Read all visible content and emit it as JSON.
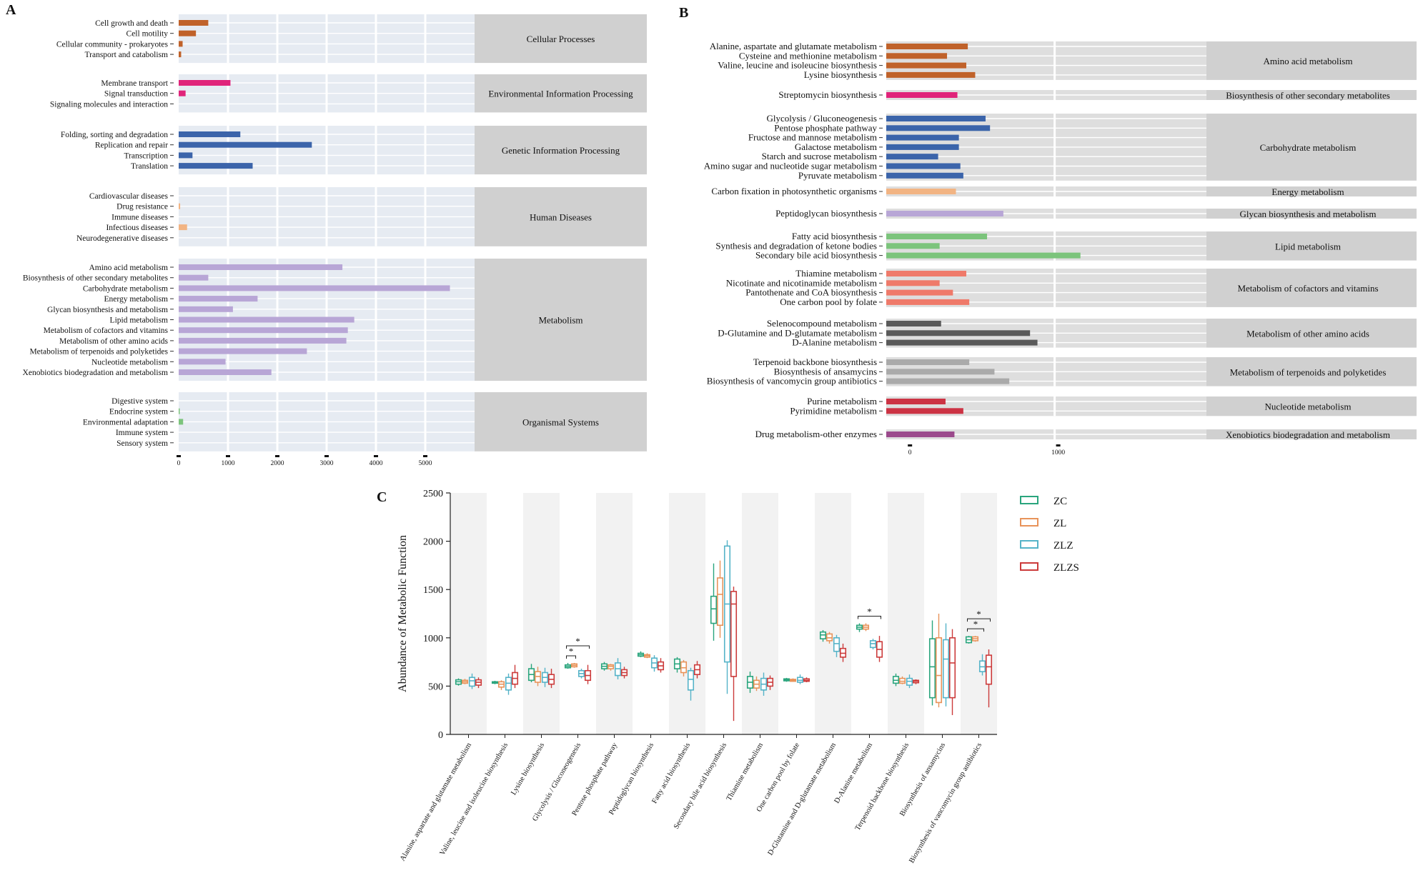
{
  "chart_data": [
    {
      "panel": "A",
      "type": "bar",
      "orientation": "horizontal",
      "xticks": [
        0,
        1000,
        2000,
        3000,
        4000,
        5000
      ],
      "xlim": [
        0,
        6000
      ],
      "groups": [
        {
          "name": "Cellular Processes",
          "color": "#c0622a",
          "items": [
            {
              "label": "Cell growth and death",
              "value": 600
            },
            {
              "label": "Cell motility",
              "value": 350
            },
            {
              "label": "Cellular community - prokaryotes",
              "value": 80
            },
            {
              "label": "Transport and catabolism",
              "value": 50
            }
          ]
        },
        {
          "name": "Environmental Information Processing",
          "color": "#e0247a",
          "items": [
            {
              "label": "Membrane transport",
              "value": 1050
            },
            {
              "label": "Signal transduction",
              "value": 140
            },
            {
              "label": "Signaling molecules and interaction",
              "value": 0
            }
          ]
        },
        {
          "name": "Genetic Information Processing",
          "color": "#3b64aa",
          "items": [
            {
              "label": "Folding, sorting and degradation",
              "value": 1250
            },
            {
              "label": "Replication and repair",
              "value": 2700
            },
            {
              "label": "Transcription",
              "value": 280
            },
            {
              "label": "Translation",
              "value": 1500
            }
          ]
        },
        {
          "name": "Human Diseases",
          "color": "#f2b483",
          "items": [
            {
              "label": "Cardiovascular diseases",
              "value": 0
            },
            {
              "label": "Drug resistance",
              "value": 30
            },
            {
              "label": "Immune diseases",
              "value": 0
            },
            {
              "label": "Infectious diseases",
              "value": 170
            },
            {
              "label": "Neurodegenerative diseases",
              "value": 0
            }
          ]
        },
        {
          "name": "Metabolism",
          "color": "#b8a6d6",
          "items": [
            {
              "label": "Amino acid metabolism",
              "value": 3320
            },
            {
              "label": "Biosynthesis of other secondary metabolites",
              "value": 600
            },
            {
              "label": "Carbohydrate metabolism",
              "value": 5500
            },
            {
              "label": "Energy metabolism",
              "value": 1600
            },
            {
              "label": "Glycan biosynthesis and metabolism",
              "value": 1100
            },
            {
              "label": "Lipid metabolism",
              "value": 3560
            },
            {
              "label": "Metabolism of cofactors and vitamins",
              "value": 3430
            },
            {
              "label": "Metabolism of other amino acids",
              "value": 3400
            },
            {
              "label": "Metabolism of terpenoids and polyketides",
              "value": 2600
            },
            {
              "label": "Nucleotide metabolism",
              "value": 950
            },
            {
              "label": "Xenobiotics biodegradation and metabolism",
              "value": 1880
            }
          ]
        },
        {
          "name": "Organismal Systems",
          "color": "#7cc47c",
          "items": [
            {
              "label": "Digestive system",
              "value": 0
            },
            {
              "label": "Endocrine system",
              "value": 20
            },
            {
              "label": "Environmental adaptation",
              "value": 90
            },
            {
              "label": "Immune system",
              "value": 0
            },
            {
              "label": "Sensory system",
              "value": 0
            }
          ]
        }
      ]
    },
    {
      "panel": "B",
      "type": "bar",
      "orientation": "horizontal",
      "xticks": [
        0,
        1000
      ],
      "xlim": [
        -160,
        2000
      ],
      "groups": [
        {
          "name": "Amino acid metabolism",
          "color": "#c0622a",
          "items": [
            {
              "label": "Alanine, aspartate and glutamate metabolism",
              "value": 390
            },
            {
              "label": "Cysteine and methionine metabolism",
              "value": 250
            },
            {
              "label": "Valine, leucine and isoleucine biosynthesis",
              "value": 380
            },
            {
              "label": "Lysine biosynthesis",
              "value": 440
            }
          ]
        },
        {
          "name": "Biosynthesis of other secondary metabolites",
          "color": "#e0247a",
          "items": [
            {
              "label": "Streptomycin biosynthesis",
              "value": 320
            }
          ]
        },
        {
          "name": "Carbohydrate metabolism",
          "color": "#3b64aa",
          "items": [
            {
              "label": "Glycolysis / Gluconeogenesis",
              "value": 510
            },
            {
              "label": "Pentose phosphate pathway",
              "value": 540
            },
            {
              "label": "Fructose and mannose metabolism",
              "value": 330
            },
            {
              "label": "Galactose metabolism",
              "value": 330
            },
            {
              "label": "Starch and sucrose metabolism",
              "value": 190
            },
            {
              "label": "Amino sugar and nucleotide sugar metabolism",
              "value": 340
            },
            {
              "label": "Pyruvate metabolism",
              "value": 360
            }
          ]
        },
        {
          "name": "Energy metabolism",
          "color": "#f2b483",
          "items": [
            {
              "label": "Carbon fixation in photosynthetic organisms",
              "value": 310
            }
          ]
        },
        {
          "name": "Glycan biosynthesis and metabolism",
          "color": "#b8a6d6",
          "items": [
            {
              "label": "Peptidoglycan biosynthesis",
              "value": 630
            }
          ]
        },
        {
          "name": "Lipid metabolism",
          "color": "#7cc47c",
          "items": [
            {
              "label": "Fatty acid biosynthesis",
              "value": 520
            },
            {
              "label": "Synthesis and degradation of ketone bodies",
              "value": 200
            },
            {
              "label": "Secondary bile acid biosynthesis",
              "value": 1150
            }
          ]
        },
        {
          "name": "Metabolism of cofactors and vitamins",
          "color": "#ef7a6a",
          "items": [
            {
              "label": "Thiamine metabolism",
              "value": 380
            },
            {
              "label": "Nicotinate and nicotinamide metabolism",
              "value": 200
            },
            {
              "label": "Pantothenate and CoA biosynthesis",
              "value": 290
            },
            {
              "label": "One carbon pool by folate",
              "value": 400
            }
          ]
        },
        {
          "name": "Metabolism of other amino acids",
          "color": "#5a5a5a",
          "items": [
            {
              "label": "Selenocompound metabolism",
              "value": 210
            },
            {
              "label": "D-Glutamine and D-glutamate metabolism",
              "value": 810
            },
            {
              "label": "D-Alanine metabolism",
              "value": 860
            }
          ]
        },
        {
          "name": "Metabolism of terpenoids and polyketides",
          "color": "#aaaaaa",
          "items": [
            {
              "label": "Terpenoid backbone biosynthesis",
              "value": 400
            },
            {
              "label": "Biosynthesis of ansamycins",
              "value": 570
            },
            {
              "label": "Biosynthesis of vancomycin group antibiotics",
              "value": 670
            }
          ]
        },
        {
          "name": "Nucleotide metabolism",
          "color": "#cc3344",
          "items": [
            {
              "label": "Purine metabolism",
              "value": 240
            },
            {
              "label": "Pyrimidine metabolism",
              "value": 360
            }
          ]
        },
        {
          "name": "Xenobiotics biodegradation and metabolism",
          "color": "#9b4a8c",
          "items": [
            {
              "label": "Drug metabolism-other enzymes",
              "value": 300
            }
          ]
        }
      ]
    },
    {
      "panel": "C",
      "type": "box",
      "ylabel": "Abundance of Metabolic Function",
      "ylim": [
        0,
        2500
      ],
      "yticks": [
        0,
        500,
        1000,
        1500,
        2000,
        2500
      ],
      "series": [
        {
          "name": "ZC",
          "color": "#2aa57d"
        },
        {
          "name": "ZL",
          "color": "#e8935a"
        },
        {
          "name": "ZLZ",
          "color": "#55b3c8"
        },
        {
          "name": "ZLZS",
          "color": "#cc3b3b"
        }
      ],
      "categories": [
        {
          "label": "Alanine, aspartate and glutamate metabolism",
          "boxes": [
            [
              505,
              520,
              545,
              565,
              580
            ],
            [
              520,
              530,
              545,
              560,
              575
            ],
            [
              470,
              500,
              555,
              590,
              630
            ],
            [
              480,
              510,
              540,
              565,
              590
            ]
          ]
        },
        {
          "label": "Valine, leucine and isoleucine biosynthesis",
          "boxes": [
            [
              520,
              530,
              540,
              545,
              555
            ],
            [
              460,
              490,
              520,
              545,
              560
            ],
            [
              410,
              460,
              530,
              590,
              630
            ],
            [
              480,
              520,
              580,
              640,
              720
            ]
          ]
        },
        {
          "label": "Lysine biosynthesis",
          "boxes": [
            [
              540,
              560,
              620,
              680,
              730
            ],
            [
              500,
              540,
              600,
              650,
              700
            ],
            [
              490,
              540,
              590,
              640,
              690
            ],
            [
              480,
              520,
              570,
              620,
              680
            ]
          ]
        },
        {
          "label": "Glycolysis / Gluconeogenesis",
          "boxes": [
            [
              680,
              690,
              705,
              720,
              740
            ],
            [
              690,
              700,
              715,
              730,
              740
            ],
            [
              580,
              600,
              630,
              660,
              680
            ],
            [
              520,
              560,
              610,
              660,
              720
            ]
          ],
          "signif": [
            {
              "from": 0,
              "to": 3,
              "label": "*"
            },
            {
              "from": 0,
              "to": 1,
              "label": "*"
            }
          ]
        },
        {
          "label": "Pentose phosphate pathway",
          "boxes": [
            [
              660,
              680,
              705,
              730,
              750
            ],
            [
              660,
              680,
              705,
              720,
              730
            ],
            [
              570,
              610,
              680,
              740,
              790
            ],
            [
              580,
              610,
              640,
              670,
              700
            ]
          ]
        },
        {
          "label": "Peptidoglycan biosynthesis",
          "boxes": [
            [
              800,
              810,
              825,
              840,
              860
            ],
            [
              790,
              800,
              815,
              825,
              840
            ],
            [
              650,
              690,
              740,
              790,
              820
            ],
            [
              640,
              670,
              710,
              750,
              790
            ]
          ]
        },
        {
          "label": "Fatty acid biosynthesis",
          "boxes": [
            [
              640,
              680,
              730,
              780,
              800
            ],
            [
              600,
              640,
              690,
              750,
              770
            ],
            [
              350,
              460,
              570,
              660,
              690
            ],
            [
              580,
              620,
              670,
              720,
              760
            ]
          ]
        },
        {
          "label": "Secondary bile acid biosynthesis",
          "boxes": [
            [
              970,
              1150,
              1300,
              1430,
              1770
            ],
            [
              1000,
              1130,
              1450,
              1620,
              1800
            ],
            [
              420,
              750,
              1350,
              1950,
              2010
            ],
            [
              140,
              600,
              1350,
              1480,
              1530
            ]
          ]
        },
        {
          "label": "Thiamine metabolism",
          "boxes": [
            [
              430,
              480,
              540,
              600,
              650
            ],
            [
              450,
              480,
              520,
              560,
              600
            ],
            [
              400,
              460,
              520,
              580,
              640
            ],
            [
              460,
              500,
              540,
              580,
              610
            ]
          ]
        },
        {
          "label": "One carbon pool by folate",
          "boxes": [
            [
              545,
              555,
              565,
              575,
              585
            ],
            [
              545,
              550,
              560,
              570,
              580
            ],
            [
              520,
              540,
              560,
              590,
              620
            ],
            [
              540,
              550,
              560,
              575,
              590
            ]
          ]
        },
        {
          "label": "D-Glutamine and D-glutamate metabolism",
          "boxes": [
            [
              960,
              990,
              1030,
              1060,
              1080
            ],
            [
              940,
              970,
              1000,
              1040,
              1060
            ],
            [
              800,
              860,
              940,
              1000,
              1030
            ],
            [
              750,
              800,
              840,
              890,
              940
            ]
          ]
        },
        {
          "label": "D-Alanine metabolism",
          "boxes": [
            [
              1060,
              1090,
              1110,
              1130,
              1150
            ],
            [
              1070,
              1090,
              1110,
              1130,
              1150
            ],
            [
              880,
              900,
              940,
              970,
              990
            ],
            [
              750,
              800,
              880,
              960,
              1020
            ]
          ],
          "signif": [
            {
              "from": 0,
              "to": 3,
              "label": "*"
            }
          ]
        },
        {
          "label": "Terpenoid backbone biosynthesis",
          "boxes": [
            [
              500,
              530,
              560,
              600,
              630
            ],
            [
              520,
              530,
              550,
              580,
              600
            ],
            [
              480,
              510,
              550,
              580,
              620
            ],
            [
              520,
              535,
              550,
              560,
              570
            ]
          ]
        },
        {
          "label": "Biosynthesis of ansamycins",
          "boxes": [
            [
              300,
              380,
              700,
              990,
              1180
            ],
            [
              280,
              330,
              610,
              1000,
              1250
            ],
            [
              290,
              380,
              780,
              980,
              1150
            ],
            [
              200,
              380,
              740,
              1000,
              1090
            ]
          ]
        },
        {
          "label": "Biosynthesis of vancomycin group antibiotics",
          "boxes": [
            [
              940,
              950,
              980,
              1010,
              1020
            ],
            [
              960,
              970,
              990,
              1010,
              1020
            ],
            [
              610,
              650,
              700,
              760,
              830
            ],
            [
              280,
              520,
              700,
              820,
              880
            ]
          ],
          "signif": [
            {
              "from": 0,
              "to": 3,
              "label": "*"
            },
            {
              "from": 0,
              "to": 2,
              "label": "*"
            }
          ]
        }
      ]
    }
  ]
}
